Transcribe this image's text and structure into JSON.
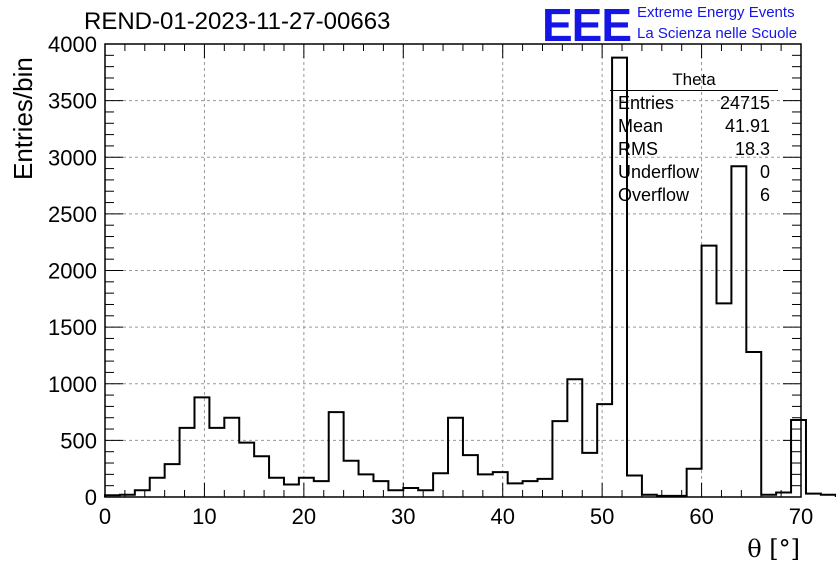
{
  "header": {
    "run_title": "REND-01-2023-11-27-00663",
    "logo_text": "EEE",
    "logo_line1": "Extreme Energy Events",
    "logo_line2": "La Scienza nelle Scuole",
    "logo_color": "#1515e6"
  },
  "stats": {
    "name": "Theta",
    "rows": [
      {
        "label": "Entries",
        "value": "24715"
      },
      {
        "label": "Mean",
        "value": "41.91"
      },
      {
        "label": "RMS",
        "value": "18.3"
      },
      {
        "label": "Underflow",
        "value": "0"
      },
      {
        "label": "Overflow",
        "value": "6"
      }
    ]
  },
  "chart_data": {
    "type": "histogram",
    "xlabel": "θ [°]",
    "ylabel": "Entries/bin",
    "xlim": [
      0,
      70
    ],
    "ylim": [
      0,
      4000
    ],
    "x_ticks": [
      0,
      10,
      20,
      30,
      40,
      50,
      60,
      70
    ],
    "y_ticks": [
      0,
      500,
      1000,
      1500,
      2000,
      2500,
      3000,
      3500,
      4000
    ],
    "grid": true,
    "line_color": "#000000",
    "bin_width": 1.5,
    "bin_edges_start": 0,
    "values": [
      15,
      20,
      60,
      170,
      290,
      610,
      880,
      610,
      700,
      480,
      360,
      170,
      110,
      170,
      140,
      750,
      320,
      200,
      140,
      60,
      80,
      60,
      210,
      700,
      370,
      200,
      220,
      120,
      140,
      160,
      670,
      1040,
      390,
      820,
      3880,
      190,
      20,
      10,
      10,
      250,
      2220,
      1710,
      2920,
      1280,
      20,
      40,
      680,
      30,
      20
    ]
  }
}
